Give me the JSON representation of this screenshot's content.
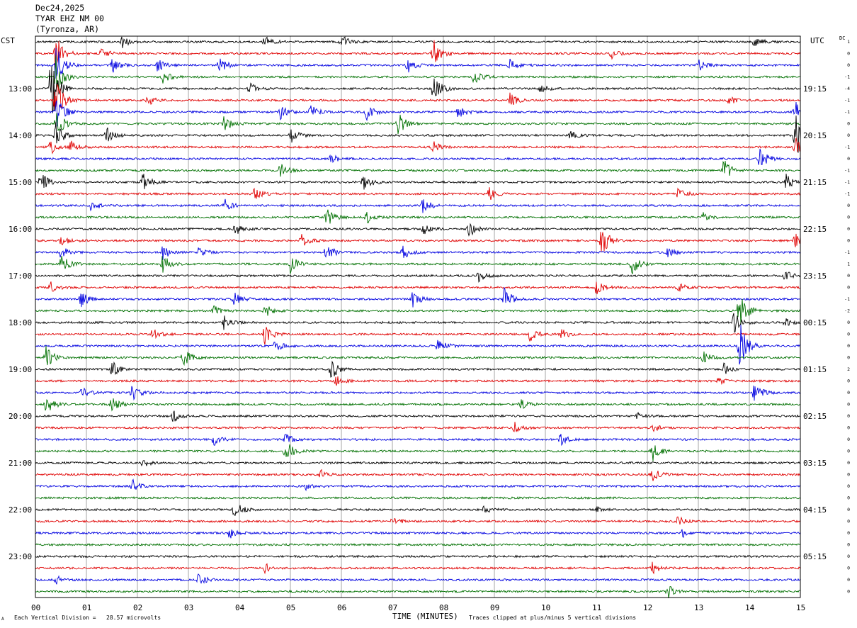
{
  "header": {
    "date": "Dec24,2025",
    "station": "TYAR EHZ NM 00",
    "location": "(Tyronza, AR)"
  },
  "left_timezone": "CST",
  "right_timezone": "UTC",
  "dc_label": "DC",
  "footer": {
    "scale_text": "Each Vertical Division =   28.57 microvolts",
    "xlabel": "TIME (MINUTES)",
    "clip_text": "Traces clipped at plus/minus 5 vertical divisions",
    "corner_mark": "A"
  },
  "colors": [
    "#000000",
    "#e00000",
    "#0000e0",
    "#007000"
  ],
  "chart_data": {
    "type": "line",
    "title": "TYAR EHZ NM 00",
    "xlabel": "TIME (MINUTES)",
    "xlim": [
      0,
      15
    ],
    "x_ticks": [
      "00",
      "01",
      "02",
      "03",
      "04",
      "05",
      "06",
      "07",
      "08",
      "09",
      "10",
      "11",
      "12",
      "13",
      "14",
      "15"
    ],
    "trace_minutes": 15,
    "trace_count": 48,
    "color_cycle": [
      "black",
      "red",
      "blue",
      "green"
    ],
    "left_hour_labels": [
      "13:00",
      "14:00",
      "15:00",
      "16:00",
      "17:00",
      "18:00",
      "19:00",
      "20:00",
      "21:00",
      "22:00",
      "23:00"
    ],
    "right_hour_labels": [
      "19:15",
      "20:15",
      "21:15",
      "22:15",
      "23:15",
      "00:15",
      "01:15",
      "02:15",
      "03:15",
      "04:15",
      "05:15"
    ],
    "dc_offsets": [
      "1",
      "0",
      "0",
      "-1",
      "-4",
      "-1",
      "-1",
      "0",
      "0",
      "-1",
      "0",
      "-1",
      "-1",
      "-1",
      "0",
      "0",
      "0",
      "0",
      "-1",
      "1",
      "0",
      "0",
      "-1",
      "-2",
      "0",
      "0",
      "0",
      "0",
      "2",
      "0",
      "0",
      "0",
      "0",
      "0",
      "0",
      "0",
      "0",
      "0",
      "0",
      "0",
      "0",
      "0",
      "0",
      "0",
      "0",
      "0",
      "0",
      "0"
    ],
    "events": [
      {
        "trace": 0,
        "minute": 1.7,
        "amp": 0.5
      },
      {
        "trace": 0,
        "minute": 4.5,
        "amp": 0.5
      },
      {
        "trace": 0,
        "minute": 6.0,
        "amp": 0.6
      },
      {
        "trace": 0,
        "minute": 14.1,
        "amp": 0.5
      },
      {
        "trace": 1,
        "minute": 0.4,
        "amp": 1.6
      },
      {
        "trace": 1,
        "minute": 1.3,
        "amp": 0.5
      },
      {
        "trace": 1,
        "minute": 7.8,
        "amp": 1.3
      },
      {
        "trace": 1,
        "minute": 11.3,
        "amp": 0.4
      },
      {
        "trace": 2,
        "minute": 0.4,
        "amp": 2.0
      },
      {
        "trace": 2,
        "minute": 1.5,
        "amp": 0.7
      },
      {
        "trace": 2,
        "minute": 2.4,
        "amp": 0.7
      },
      {
        "trace": 2,
        "minute": 3.6,
        "amp": 0.7
      },
      {
        "trace": 2,
        "minute": 7.3,
        "amp": 0.7
      },
      {
        "trace": 2,
        "minute": 9.3,
        "amp": 0.6
      },
      {
        "trace": 2,
        "minute": 13.0,
        "amp": 0.5
      },
      {
        "trace": 3,
        "minute": 0.4,
        "amp": 2.0
      },
      {
        "trace": 3,
        "minute": 2.5,
        "amp": 0.5
      },
      {
        "trace": 3,
        "minute": 8.6,
        "amp": 0.7
      },
      {
        "trace": 4,
        "minute": 0.3,
        "amp": 3.5
      },
      {
        "trace": 4,
        "minute": 4.2,
        "amp": 0.5
      },
      {
        "trace": 4,
        "minute": 7.8,
        "amp": 1.4
      },
      {
        "trace": 4,
        "minute": 9.9,
        "amp": 0.4
      },
      {
        "trace": 5,
        "minute": 0.4,
        "amp": 2.0
      },
      {
        "trace": 5,
        "minute": 2.2,
        "amp": 0.5
      },
      {
        "trace": 5,
        "minute": 9.3,
        "amp": 0.6
      },
      {
        "trace": 5,
        "minute": 13.6,
        "amp": 0.4
      },
      {
        "trace": 6,
        "minute": 0.4,
        "amp": 1.6
      },
      {
        "trace": 6,
        "minute": 4.8,
        "amp": 0.7
      },
      {
        "trace": 6,
        "minute": 5.4,
        "amp": 0.6
      },
      {
        "trace": 6,
        "minute": 6.5,
        "amp": 0.7
      },
      {
        "trace": 6,
        "minute": 8.3,
        "amp": 0.6
      },
      {
        "trace": 6,
        "minute": 14.9,
        "amp": 0.9
      },
      {
        "trace": 7,
        "minute": 0.4,
        "amp": 1.4
      },
      {
        "trace": 7,
        "minute": 3.7,
        "amp": 0.7
      },
      {
        "trace": 7,
        "minute": 7.1,
        "amp": 1.1
      },
      {
        "trace": 8,
        "minute": 0.4,
        "amp": 1.2
      },
      {
        "trace": 8,
        "minute": 1.4,
        "amp": 0.8
      },
      {
        "trace": 8,
        "minute": 5.0,
        "amp": 0.7
      },
      {
        "trace": 8,
        "minute": 10.5,
        "amp": 0.4
      },
      {
        "trace": 8,
        "minute": 14.9,
        "amp": 2.4
      },
      {
        "trace": 9,
        "minute": 0.3,
        "amp": 0.6
      },
      {
        "trace": 9,
        "minute": 0.7,
        "amp": 0.5
      },
      {
        "trace": 9,
        "minute": 7.8,
        "amp": 0.5
      },
      {
        "trace": 9,
        "minute": 14.9,
        "amp": 1.0
      },
      {
        "trace": 10,
        "minute": 14.2,
        "amp": 1.0
      },
      {
        "trace": 10,
        "minute": 5.8,
        "amp": 0.4
      },
      {
        "trace": 11,
        "minute": 4.8,
        "amp": 0.6
      },
      {
        "trace": 11,
        "minute": 13.5,
        "amp": 1.0
      },
      {
        "trace": 12,
        "minute": 0.1,
        "amp": 0.9
      },
      {
        "trace": 12,
        "minute": 2.1,
        "amp": 0.8
      },
      {
        "trace": 12,
        "minute": 6.4,
        "amp": 1.1
      },
      {
        "trace": 12,
        "minute": 14.7,
        "amp": 0.8
      },
      {
        "trace": 13,
        "minute": 4.3,
        "amp": 0.6
      },
      {
        "trace": 13,
        "minute": 8.9,
        "amp": 0.6
      },
      {
        "trace": 13,
        "minute": 12.6,
        "amp": 0.5
      },
      {
        "trace": 14,
        "minute": 1.1,
        "amp": 0.5
      },
      {
        "trace": 14,
        "minute": 3.7,
        "amp": 0.6
      },
      {
        "trace": 14,
        "minute": 7.6,
        "amp": 0.6
      },
      {
        "trace": 15,
        "minute": 5.7,
        "amp": 0.9
      },
      {
        "trace": 15,
        "minute": 6.5,
        "amp": 0.6
      },
      {
        "trace": 15,
        "minute": 13.1,
        "amp": 0.4
      },
      {
        "trace": 16,
        "minute": 3.9,
        "amp": 0.6
      },
      {
        "trace": 16,
        "minute": 7.6,
        "amp": 0.5
      },
      {
        "trace": 16,
        "minute": 8.5,
        "amp": 0.7
      },
      {
        "trace": 17,
        "minute": 0.5,
        "amp": 0.6
      },
      {
        "trace": 17,
        "minute": 5.2,
        "amp": 0.8
      },
      {
        "trace": 17,
        "minute": 11.1,
        "amp": 1.4
      },
      {
        "trace": 17,
        "minute": 14.9,
        "amp": 0.6
      },
      {
        "trace": 18,
        "minute": 0.5,
        "amp": 0.6
      },
      {
        "trace": 18,
        "minute": 2.5,
        "amp": 0.6
      },
      {
        "trace": 18,
        "minute": 3.2,
        "amp": 0.5
      },
      {
        "trace": 18,
        "minute": 5.7,
        "amp": 0.8
      },
      {
        "trace": 18,
        "minute": 7.2,
        "amp": 0.6
      },
      {
        "trace": 18,
        "minute": 12.4,
        "amp": 0.5
      },
      {
        "trace": 19,
        "minute": 0.5,
        "amp": 1.0
      },
      {
        "trace": 19,
        "minute": 2.5,
        "amp": 1.0
      },
      {
        "trace": 19,
        "minute": 5.0,
        "amp": 0.8
      },
      {
        "trace": 19,
        "minute": 11.7,
        "amp": 0.9
      },
      {
        "trace": 20,
        "minute": 8.7,
        "amp": 0.5
      },
      {
        "trace": 20,
        "minute": 14.7,
        "amp": 0.5
      },
      {
        "trace": 21,
        "minute": 0.3,
        "amp": 0.5
      },
      {
        "trace": 21,
        "minute": 11.0,
        "amp": 0.6
      },
      {
        "trace": 21,
        "minute": 12.6,
        "amp": 0.4
      },
      {
        "trace": 22,
        "minute": 0.9,
        "amp": 0.7
      },
      {
        "trace": 22,
        "minute": 3.9,
        "amp": 0.6
      },
      {
        "trace": 22,
        "minute": 7.4,
        "amp": 0.7
      },
      {
        "trace": 22,
        "minute": 9.2,
        "amp": 1.0
      },
      {
        "trace": 23,
        "minute": 3.5,
        "amp": 0.5
      },
      {
        "trace": 23,
        "minute": 4.5,
        "amp": 0.6
      },
      {
        "trace": 23,
        "minute": 13.8,
        "amp": 2.0
      },
      {
        "trace": 24,
        "minute": 3.7,
        "amp": 0.7
      },
      {
        "trace": 24,
        "minute": 13.7,
        "amp": 1.0
      },
      {
        "trace": 24,
        "minute": 14.7,
        "amp": 0.4
      },
      {
        "trace": 25,
        "minute": 2.3,
        "amp": 0.5
      },
      {
        "trace": 25,
        "minute": 4.5,
        "amp": 1.0
      },
      {
        "trace": 25,
        "minute": 9.7,
        "amp": 0.6
      },
      {
        "trace": 25,
        "minute": 10.3,
        "amp": 0.5
      },
      {
        "trace": 26,
        "minute": 4.7,
        "amp": 0.5
      },
      {
        "trace": 26,
        "minute": 7.9,
        "amp": 0.9
      },
      {
        "trace": 26,
        "minute": 13.8,
        "amp": 2.5
      },
      {
        "trace": 27,
        "minute": 0.2,
        "amp": 1.0
      },
      {
        "trace": 27,
        "minute": 2.9,
        "amp": 0.8
      },
      {
        "trace": 27,
        "minute": 13.1,
        "amp": 0.5
      },
      {
        "trace": 28,
        "minute": 1.5,
        "amp": 0.7
      },
      {
        "trace": 28,
        "minute": 5.8,
        "amp": 0.9
      },
      {
        "trace": 28,
        "minute": 13.5,
        "amp": 0.5
      },
      {
        "trace": 29,
        "minute": 5.9,
        "amp": 0.4
      },
      {
        "trace": 29,
        "minute": 13.4,
        "amp": 0.3
      },
      {
        "trace": 30,
        "minute": 0.9,
        "amp": 0.5
      },
      {
        "trace": 30,
        "minute": 1.9,
        "amp": 0.7
      },
      {
        "trace": 30,
        "minute": 14.1,
        "amp": 0.9
      },
      {
        "trace": 31,
        "minute": 0.2,
        "amp": 1.0
      },
      {
        "trace": 31,
        "minute": 1.5,
        "amp": 0.8
      },
      {
        "trace": 31,
        "minute": 9.5,
        "amp": 0.5
      },
      {
        "trace": 32,
        "minute": 2.7,
        "amp": 0.5
      },
      {
        "trace": 32,
        "minute": 11.8,
        "amp": 0.3
      },
      {
        "trace": 33,
        "minute": 9.4,
        "amp": 0.5
      },
      {
        "trace": 33,
        "minute": 12.1,
        "amp": 0.3
      },
      {
        "trace": 34,
        "minute": 3.5,
        "amp": 0.5
      },
      {
        "trace": 34,
        "minute": 4.9,
        "amp": 0.5
      },
      {
        "trace": 34,
        "minute": 10.3,
        "amp": 0.5
      },
      {
        "trace": 35,
        "minute": 4.9,
        "amp": 1.0
      },
      {
        "trace": 35,
        "minute": 12.1,
        "amp": 0.9
      },
      {
        "trace": 36,
        "minute": 2.1,
        "amp": 0.4
      },
      {
        "trace": 37,
        "minute": 5.6,
        "amp": 0.4
      },
      {
        "trace": 37,
        "minute": 12.1,
        "amp": 0.6
      },
      {
        "trace": 38,
        "minute": 1.9,
        "amp": 0.6
      },
      {
        "trace": 38,
        "minute": 5.3,
        "amp": 0.3
      },
      {
        "trace": 40,
        "minute": 3.9,
        "amp": 0.8
      },
      {
        "trace": 40,
        "minute": 8.8,
        "amp": 0.3
      },
      {
        "trace": 40,
        "minute": 11.0,
        "amp": 0.3
      },
      {
        "trace": 41,
        "minute": 7.0,
        "amp": 0.4
      },
      {
        "trace": 41,
        "minute": 12.6,
        "amp": 0.5
      },
      {
        "trace": 42,
        "minute": 3.8,
        "amp": 0.5
      },
      {
        "trace": 42,
        "minute": 12.7,
        "amp": 0.4
      },
      {
        "trace": 45,
        "minute": 4.5,
        "amp": 0.4
      },
      {
        "trace": 45,
        "minute": 12.1,
        "amp": 0.5
      },
      {
        "trace": 46,
        "minute": 0.4,
        "amp": 0.4
      },
      {
        "trace": 46,
        "minute": 3.2,
        "amp": 0.5
      },
      {
        "trace": 47,
        "minute": 12.4,
        "amp": 0.6
      }
    ]
  }
}
